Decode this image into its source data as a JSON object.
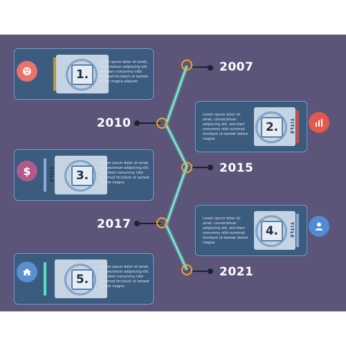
{
  "timeline": {
    "milestones": [
      {
        "index": "1.",
        "year": "2007",
        "side": "left",
        "icon": "palette-icon",
        "icon_color": "#e8736a",
        "text": "Lorem ipsum dolor sit amet, consectetuer adipiscing elit, sed diam nonummy nibh euismod tincidunt ut laoreet dolore magna aliquam",
        "title": "TITLE"
      },
      {
        "index": "2.",
        "year": "2010",
        "side": "right",
        "icon": "bar-chart-icon",
        "icon_color": "#e25a4e",
        "text": "Lorem ipsum dolor sit amet, consectetuer adipiscing elit, sed diam nonummy nibh euismod tincidunt ut laoreet dolore magna",
        "title": "TITLE"
      },
      {
        "index": "3.",
        "year": "2015",
        "side": "left",
        "icon": "dollar-icon",
        "icon_color": "#b25a8c",
        "text": "Lorem ipsum dolor sit amet, consectetuer adipiscing elit, sed diam nonummy nibh euismod tincidunt ut laoreet dolore magna",
        "title": "TITLE"
      },
      {
        "index": "4.",
        "year": "2017",
        "side": "right",
        "icon": "user-icon",
        "icon_color": "#4f8bd6",
        "text": "Lorem ipsum dolor sit amet, consectetuer adipiscing elit, sed diam nonummy nibh euismod tincidunt ut laoreet dolore magna",
        "title": "TITLE"
      },
      {
        "index": "5.",
        "year": "2021",
        "side": "left",
        "icon": "home-icon",
        "icon_color": "#5a8fd0",
        "text": "Lorem ipsum dolor sit amet, consectetuer adipiscing elit, sed diam nonummy nibh euismod tincidunt ut laoreet dolore magna",
        "title": "TITLE"
      }
    ]
  },
  "colors": {
    "background": "#5c5479",
    "card": "#3b5b7f",
    "timeline_glow": "#57e0c3",
    "node": "#f5a623"
  }
}
